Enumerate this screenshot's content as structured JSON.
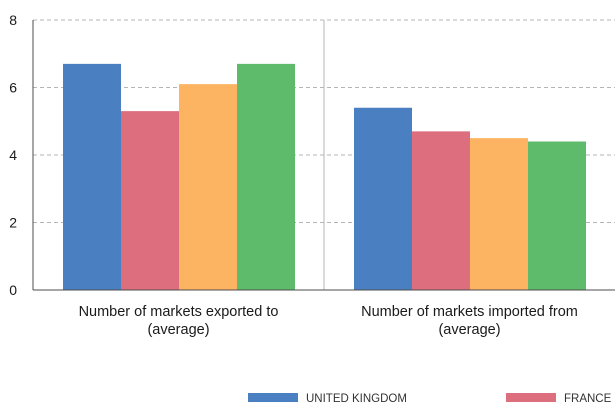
{
  "chart_data": {
    "type": "bar",
    "categories": [
      [
        "Number of markets exported to",
        "(average)"
      ],
      [
        "Number of markets imported from",
        "(average)"
      ]
    ],
    "series": [
      {
        "name": "UNITED KINGDOM",
        "color": "#4a7fc1",
        "values": [
          6.7,
          5.4
        ]
      },
      {
        "name": "FRANCE",
        "color": "#dc6e7e",
        "values": [
          5.3,
          4.7
        ]
      },
      {
        "color": "#fdb462",
        "values": [
          6.1,
          4.5
        ]
      },
      {
        "color": "#5dbb6b",
        "values": [
          6.7,
          4.4
        ]
      }
    ],
    "yticks": [
      0,
      2,
      4,
      6,
      8
    ],
    "ylim": [
      0,
      8
    ],
    "grid": "horizontal-dashed",
    "legend": "bottom",
    "title": "",
    "xlabel": "",
    "ylabel": ""
  }
}
